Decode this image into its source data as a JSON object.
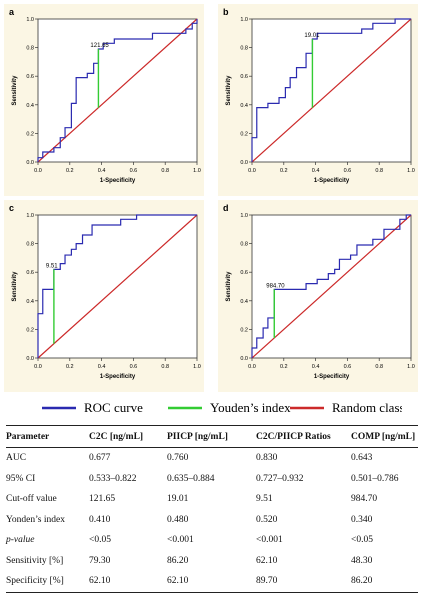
{
  "chart_data": [
    {
      "type": "line",
      "panel_label": "a",
      "xlabel": "1-Specificity",
      "ylabel": "Sensitivity",
      "xlim": [
        0,
        1
      ],
      "ylim": [
        0,
        1
      ],
      "ticks": [
        "0.0",
        "0.2",
        "0.4",
        "0.6",
        "0.8",
        "1.0"
      ],
      "grid": false,
      "roc": [
        [
          0,
          0
        ],
        [
          0,
          0.03
        ],
        [
          0.03,
          0.03
        ],
        [
          0.03,
          0.07
        ],
        [
          0.1,
          0.07
        ],
        [
          0.1,
          0.1
        ],
        [
          0.14,
          0.1
        ],
        [
          0.14,
          0.17
        ],
        [
          0.17,
          0.17
        ],
        [
          0.17,
          0.24
        ],
        [
          0.21,
          0.24
        ],
        [
          0.21,
          0.41
        ],
        [
          0.24,
          0.41
        ],
        [
          0.24,
          0.59
        ],
        [
          0.31,
          0.59
        ],
        [
          0.31,
          0.62
        ],
        [
          0.35,
          0.62
        ],
        [
          0.35,
          0.69
        ],
        [
          0.38,
          0.69
        ],
        [
          0.38,
          0.79
        ],
        [
          0.41,
          0.79
        ],
        [
          0.41,
          0.83
        ],
        [
          0.48,
          0.83
        ],
        [
          0.48,
          0.86
        ],
        [
          0.72,
          0.86
        ],
        [
          0.72,
          0.9
        ],
        [
          0.93,
          0.9
        ],
        [
          0.93,
          0.93
        ],
        [
          0.97,
          0.93
        ],
        [
          0.97,
          0.97
        ],
        [
          1,
          0.97
        ],
        [
          1,
          1
        ]
      ],
      "youden": {
        "label": "121.65",
        "x": 0.38,
        "y_from": 0.38,
        "y_to": 0.79
      },
      "series": [
        {
          "name": "ROC curve"
        },
        {
          "name": "Youden's index"
        },
        {
          "name": "Random classifier"
        }
      ]
    },
    {
      "type": "line",
      "panel_label": "b",
      "xlabel": "1-Specificity",
      "ylabel": "Sensitivity",
      "xlim": [
        0,
        1
      ],
      "ylim": [
        0,
        1
      ],
      "ticks": [
        "0.0",
        "0.2",
        "0.4",
        "0.6",
        "0.8",
        "1.0"
      ],
      "grid": false,
      "roc": [
        [
          0,
          0
        ],
        [
          0,
          0.17
        ],
        [
          0.03,
          0.17
        ],
        [
          0.03,
          0.38
        ],
        [
          0.1,
          0.38
        ],
        [
          0.1,
          0.41
        ],
        [
          0.17,
          0.41
        ],
        [
          0.17,
          0.45
        ],
        [
          0.21,
          0.45
        ],
        [
          0.21,
          0.52
        ],
        [
          0.24,
          0.52
        ],
        [
          0.24,
          0.59
        ],
        [
          0.28,
          0.59
        ],
        [
          0.28,
          0.66
        ],
        [
          0.34,
          0.66
        ],
        [
          0.34,
          0.76
        ],
        [
          0.38,
          0.76
        ],
        [
          0.38,
          0.86
        ],
        [
          0.41,
          0.86
        ],
        [
          0.41,
          0.9
        ],
        [
          0.69,
          0.9
        ],
        [
          0.69,
          0.93
        ],
        [
          0.76,
          0.93
        ],
        [
          0.76,
          0.97
        ],
        [
          0.9,
          0.97
        ],
        [
          0.9,
          1
        ],
        [
          1,
          1
        ]
      ],
      "youden": {
        "label": "19.01",
        "x": 0.38,
        "y_from": 0.38,
        "y_to": 0.86
      }
    },
    {
      "type": "line",
      "panel_label": "c",
      "xlabel": "1-Specificity",
      "ylabel": "Sensitivity",
      "xlim": [
        0,
        1
      ],
      "ylim": [
        0,
        1
      ],
      "ticks": [
        "0.0",
        "0.2",
        "0.4",
        "0.6",
        "0.8",
        "1.0"
      ],
      "grid": false,
      "roc": [
        [
          0,
          0
        ],
        [
          0,
          0.31
        ],
        [
          0.03,
          0.31
        ],
        [
          0.03,
          0.48
        ],
        [
          0.1,
          0.48
        ],
        [
          0.1,
          0.62
        ],
        [
          0.14,
          0.62
        ],
        [
          0.14,
          0.66
        ],
        [
          0.17,
          0.66
        ],
        [
          0.17,
          0.72
        ],
        [
          0.21,
          0.72
        ],
        [
          0.21,
          0.76
        ],
        [
          0.24,
          0.76
        ],
        [
          0.24,
          0.8
        ],
        [
          0.28,
          0.8
        ],
        [
          0.28,
          0.86
        ],
        [
          0.34,
          0.86
        ],
        [
          0.34,
          0.93
        ],
        [
          0.52,
          0.93
        ],
        [
          0.52,
          0.97
        ],
        [
          0.62,
          0.97
        ],
        [
          0.62,
          1
        ],
        [
          1,
          1
        ]
      ],
      "youden": {
        "label": "9.51",
        "x": 0.1,
        "y_from": 0.1,
        "y_to": 0.62
      }
    },
    {
      "type": "line",
      "panel_label": "d",
      "xlabel": "1-Specificity",
      "ylabel": "Sensitivity",
      "xlim": [
        0,
        1
      ],
      "ylim": [
        0,
        1
      ],
      "ticks": [
        "0.0",
        "0.2",
        "0.4",
        "0.6",
        "0.8",
        "1.0"
      ],
      "grid": false,
      "roc": [
        [
          0,
          0
        ],
        [
          0,
          0.07
        ],
        [
          0.03,
          0.07
        ],
        [
          0.03,
          0.14
        ],
        [
          0.07,
          0.14
        ],
        [
          0.07,
          0.21
        ],
        [
          0.1,
          0.21
        ],
        [
          0.1,
          0.28
        ],
        [
          0.14,
          0.28
        ],
        [
          0.14,
          0.48
        ],
        [
          0.34,
          0.48
        ],
        [
          0.34,
          0.52
        ],
        [
          0.41,
          0.52
        ],
        [
          0.41,
          0.55
        ],
        [
          0.48,
          0.55
        ],
        [
          0.48,
          0.59
        ],
        [
          0.52,
          0.59
        ],
        [
          0.52,
          0.62
        ],
        [
          0.55,
          0.62
        ],
        [
          0.55,
          0.69
        ],
        [
          0.62,
          0.69
        ],
        [
          0.62,
          0.72
        ],
        [
          0.66,
          0.72
        ],
        [
          0.66,
          0.79
        ],
        [
          0.76,
          0.79
        ],
        [
          0.76,
          0.83
        ],
        [
          0.83,
          0.83
        ],
        [
          0.83,
          0.9
        ],
        [
          0.93,
          0.9
        ],
        [
          0.93,
          0.97
        ],
        [
          0.97,
          0.97
        ],
        [
          0.97,
          1
        ],
        [
          1,
          1
        ]
      ],
      "youden": {
        "label": "984.70",
        "x": 0.14,
        "y_from": 0.14,
        "y_to": 0.48
      }
    }
  ],
  "colors": {
    "roc": "#2a2ab0",
    "youden": "#33cc33",
    "random": "#cc2a2a"
  },
  "legend": {
    "roc": "ROC curve",
    "youden": "Youden’s index",
    "random": "Random classifier"
  },
  "table": {
    "headers": [
      "Parameter",
      "C2C [ng/mL]",
      "PIICP [ng/mL]",
      "C2C/PIICP Ratios",
      "COMP [ng/mL]"
    ],
    "rows": [
      {
        "label": "AUC",
        "italic": false,
        "values": [
          "0.677",
          "0.760",
          "0.830",
          "0.643"
        ]
      },
      {
        "label": "95% CI",
        "italic": false,
        "values": [
          "0.533–0.822",
          "0.635–0.884",
          "0.727–0.932",
          "0.501–0.786"
        ]
      },
      {
        "label": "Cut-off value",
        "italic": false,
        "values": [
          "121.65",
          "19.01",
          "9.51",
          "984.70"
        ]
      },
      {
        "label": "Yonden’s index",
        "italic": false,
        "values": [
          "0.410",
          "0.480",
          "0.520",
          "0.340"
        ]
      },
      {
        "label": "p-value",
        "italic": true,
        "values": [
          "<0.05",
          "<0.001",
          "<0.001",
          "<0.05"
        ]
      },
      {
        "label": "Sensitivity [%]",
        "italic": false,
        "values": [
          "79.30",
          "86.20",
          "62.10",
          "48.30"
        ]
      },
      {
        "label": "Specificity [%]",
        "italic": false,
        "values": [
          "62.10",
          "62.10",
          "89.70",
          "86.20"
        ]
      }
    ]
  }
}
